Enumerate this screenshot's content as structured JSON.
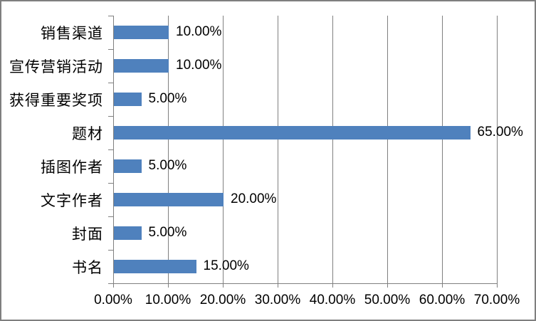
{
  "chart_data": {
    "type": "bar",
    "orientation": "horizontal",
    "title": "",
    "legend": false,
    "grid": true,
    "categories": [
      "销售渠道",
      "宣传营销活动",
      "获得重要奖项",
      "题材",
      "插图作者",
      "文字作者",
      "封面",
      "书名"
    ],
    "values": [
      10,
      10,
      5,
      65,
      5,
      20,
      5,
      15
    ],
    "value_labels": [
      "10.00%",
      "10.00%",
      "5.00%",
      "65.00%",
      "5.00%",
      "20.00%",
      "5.00%",
      "15.00%"
    ],
    "x_tick_labels": [
      "0.00%",
      "10.00%",
      "20.00%",
      "30.00%",
      "40.00%",
      "50.00%",
      "60.00%",
      "70.00%"
    ],
    "xlim": [
      0,
      70
    ],
    "colors": {
      "bar": "#4F81BD",
      "axis": "#808080",
      "gridline": "#808080",
      "text": "#000000",
      "frame_border": "#7F7F7F"
    }
  }
}
